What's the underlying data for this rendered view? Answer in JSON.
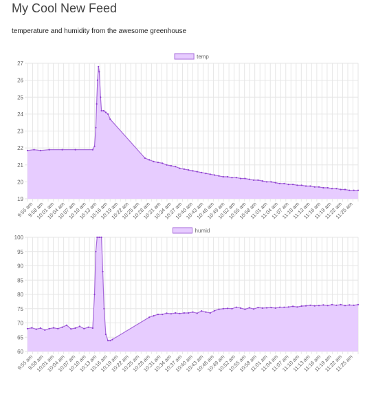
{
  "page": {
    "title": "My Cool New Feed",
    "subtitle": "temperature and humidity from the awesome greenhouse"
  },
  "colors": {
    "series_fill": "#e7ccff",
    "series_line": "#a568d9",
    "point": "#8e3fd0",
    "grid": "#e6e6e6",
    "tick_text": "#666666"
  },
  "chart_data": [
    {
      "type": "area",
      "legend": "temp",
      "legend_position": "top-center",
      "grid": true,
      "ylim": [
        19,
        27
      ],
      "yticks": [
        "19",
        "20",
        "21",
        "22",
        "23",
        "24",
        "25",
        "26",
        "27"
      ],
      "xticks": [
        "9:55 am",
        "9:58 am",
        "10:01 am",
        "10:04 am",
        "10:07 am",
        "10:10 am",
        "10:13 am",
        "10:16 am",
        "10:19 am",
        "10:22 am",
        "10:25 am",
        "10:28 am",
        "10:31 am",
        "10:34 am",
        "10:37 am",
        "10:40 am",
        "10:43 am",
        "10:46 am",
        "10:49 am",
        "10:52 am",
        "10:55 am",
        "10:58 am",
        "11:01 am",
        "11:04 am",
        "11:07 am",
        "11:10 am",
        "11:13 am",
        "11:16 am",
        "11:19 am",
        "11:22 am",
        "11:25 am"
      ],
      "points": [
        [
          0,
          21.85
        ],
        [
          1.5,
          21.9
        ],
        [
          3,
          21.85
        ],
        [
          5,
          21.9
        ],
        [
          8,
          21.9
        ],
        [
          11,
          21.9
        ],
        [
          15,
          21.9
        ],
        [
          15.4,
          22.1
        ],
        [
          15.7,
          23.2
        ],
        [
          15.9,
          24.6
        ],
        [
          16.1,
          26.0
        ],
        [
          16.3,
          26.8
        ],
        [
          16.5,
          26.5
        ],
        [
          16.8,
          25.0
        ],
        [
          17.0,
          24.2
        ],
        [
          17.5,
          24.2
        ],
        [
          18,
          24.1
        ],
        [
          18.5,
          24.0
        ],
        [
          19,
          23.7
        ],
        [
          27,
          21.4
        ],
        [
          28,
          21.3
        ],
        [
          29,
          21.2
        ],
        [
          30,
          21.15
        ],
        [
          31,
          21.1
        ],
        [
          32,
          21.0
        ],
        [
          33,
          20.95
        ],
        [
          34,
          20.9
        ],
        [
          35,
          20.8
        ],
        [
          36,
          20.75
        ],
        [
          37,
          20.7
        ],
        [
          38,
          20.65
        ],
        [
          39,
          20.6
        ],
        [
          40,
          20.55
        ],
        [
          41,
          20.5
        ],
        [
          42,
          20.45
        ],
        [
          43,
          20.4
        ],
        [
          44,
          20.35
        ],
        [
          45,
          20.3
        ],
        [
          46,
          20.3
        ],
        [
          47,
          20.25
        ],
        [
          48,
          20.25
        ],
        [
          49,
          20.2
        ],
        [
          50,
          20.2
        ],
        [
          51,
          20.15
        ],
        [
          52,
          20.1
        ],
        [
          53,
          20.1
        ],
        [
          54,
          20.05
        ],
        [
          55,
          20.0
        ],
        [
          56,
          20.0
        ],
        [
          57,
          19.95
        ],
        [
          58,
          19.9
        ],
        [
          59,
          19.9
        ],
        [
          60,
          19.85
        ],
        [
          61,
          19.85
        ],
        [
          62,
          19.8
        ],
        [
          63,
          19.8
        ],
        [
          64,
          19.75
        ],
        [
          65,
          19.75
        ],
        [
          66,
          19.7
        ],
        [
          67,
          19.7
        ],
        [
          68,
          19.65
        ],
        [
          69,
          19.65
        ],
        [
          70,
          19.6
        ],
        [
          71,
          19.6
        ],
        [
          72,
          19.55
        ],
        [
          73,
          19.55
        ],
        [
          74,
          19.5
        ],
        [
          75,
          19.5
        ],
        [
          76,
          19.5
        ]
      ]
    },
    {
      "type": "area",
      "legend": "humid",
      "legend_position": "top-center",
      "grid": true,
      "ylim": [
        60,
        100
      ],
      "yticks": [
        "60",
        "65",
        "70",
        "75",
        "80",
        "85",
        "90",
        "95",
        "100"
      ],
      "xticks": [
        "9:55 am",
        "9:58 am",
        "10:01 am",
        "10:04 am",
        "10:07 am",
        "10:10 am",
        "10:13 am",
        "10:16 am",
        "10:19 am",
        "10:22 am",
        "10:25 am",
        "10:28 am",
        "10:31 am",
        "10:34 am",
        "10:37 am",
        "10:40 am",
        "10:43 am",
        "10:46 am",
        "10:49 am",
        "10:52 am",
        "10:55 am",
        "10:58 am",
        "11:01 am",
        "11:04 am",
        "11:07 am",
        "11:10 am",
        "11:13 am",
        "11:16 am",
        "11:19 am",
        "11:22 am",
        "11:25 am"
      ],
      "points": [
        [
          0,
          68.0
        ],
        [
          1,
          68.3
        ],
        [
          2,
          67.8
        ],
        [
          3,
          68.2
        ],
        [
          4,
          67.5
        ],
        [
          5,
          68.0
        ],
        [
          6,
          68.3
        ],
        [
          7,
          68.0
        ],
        [
          8,
          68.5
        ],
        [
          9,
          69.2
        ],
        [
          10,
          67.9
        ],
        [
          11,
          68.2
        ],
        [
          12,
          68.8
        ],
        [
          13,
          68.0
        ],
        [
          14,
          68.5
        ],
        [
          15,
          68.2
        ],
        [
          15.4,
          80.0
        ],
        [
          15.7,
          95.0
        ],
        [
          16.0,
          100
        ],
        [
          16.5,
          100
        ],
        [
          17.0,
          100
        ],
        [
          17.3,
          88.0
        ],
        [
          17.6,
          75.0
        ],
        [
          18.0,
          66.0
        ],
        [
          18.5,
          63.8
        ],
        [
          19,
          63.8
        ],
        [
          19.5,
          64.2
        ],
        [
          28,
          72.0
        ],
        [
          29,
          72.5
        ],
        [
          30,
          73.0
        ],
        [
          31,
          73.0
        ],
        [
          32,
          73.4
        ],
        [
          33,
          73.2
        ],
        [
          34,
          73.5
        ],
        [
          35,
          73.3
        ],
        [
          36,
          73.5
        ],
        [
          37,
          73.5
        ],
        [
          38,
          73.8
        ],
        [
          39,
          73.4
        ],
        [
          40,
          74.2
        ],
        [
          41,
          73.8
        ],
        [
          42,
          73.5
        ],
        [
          43,
          74.3
        ],
        [
          44,
          74.8
        ],
        [
          45,
          75.0
        ],
        [
          46,
          75.1
        ],
        [
          47,
          75.0
        ],
        [
          48,
          75.5
        ],
        [
          49,
          75.2
        ],
        [
          50,
          74.8
        ],
        [
          51,
          75.3
        ],
        [
          52,
          74.9
        ],
        [
          53,
          75.4
        ],
        [
          54,
          75.2
        ],
        [
          55,
          75.3
        ],
        [
          56,
          75.4
        ],
        [
          57,
          75.2
        ],
        [
          58,
          75.5
        ],
        [
          59,
          75.5
        ],
        [
          60,
          75.6
        ],
        [
          61,
          75.8
        ],
        [
          62,
          75.6
        ],
        [
          63,
          75.9
        ],
        [
          64,
          76.0
        ],
        [
          65,
          76.2
        ],
        [
          66,
          76.0
        ],
        [
          67,
          76.1
        ],
        [
          68,
          76.3
        ],
        [
          69,
          76.1
        ],
        [
          70,
          76.4
        ],
        [
          71,
          76.2
        ],
        [
          72,
          76.4
        ],
        [
          73,
          76.1
        ],
        [
          74,
          76.3
        ],
        [
          75,
          76.2
        ],
        [
          76,
          76.4
        ]
      ]
    }
  ]
}
